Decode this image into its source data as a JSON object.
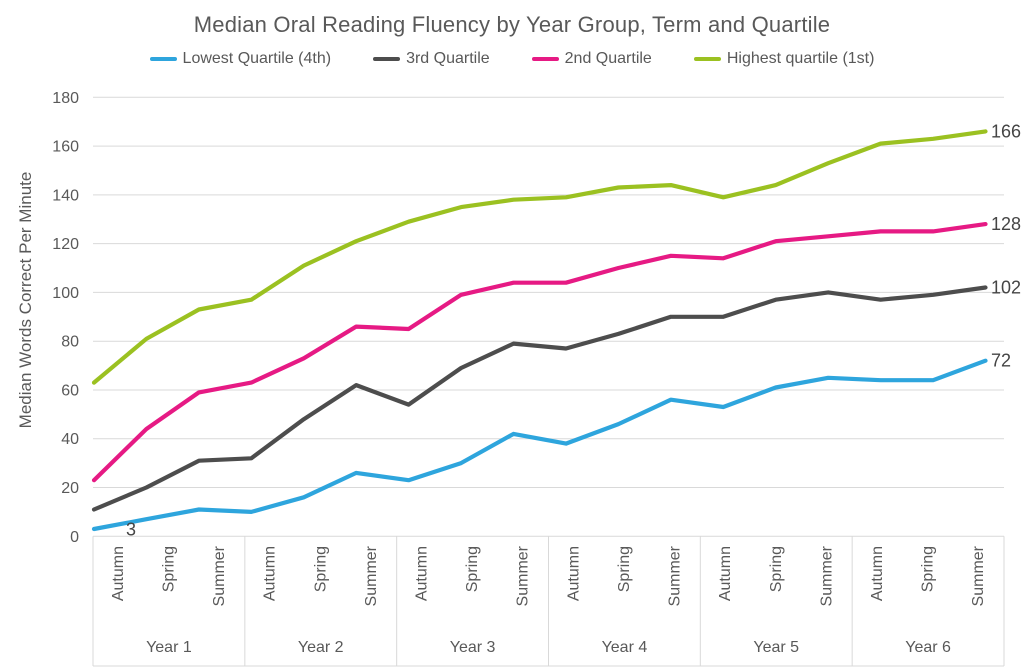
{
  "chart_data": {
    "type": "line",
    "title": "Median Oral Reading Fluency by Year Group, Term and Quartile",
    "ylabel": "Median Words Correct Per Minute",
    "xlabel": "",
    "ylim": [
      0,
      180
    ],
    "ytick_step": 20,
    "yticks": [
      0,
      20,
      40,
      60,
      80,
      100,
      120,
      140,
      160,
      180
    ],
    "grid": "horizontal",
    "legend_position": "top",
    "year_groups": [
      "Year 1",
      "Year 2",
      "Year 3",
      "Year 4",
      "Year 5",
      "Year 6"
    ],
    "terms": [
      "Autumn",
      "Spring",
      "Summer"
    ],
    "categories": [
      "Year 1 Autumn",
      "Year 1 Spring",
      "Year 1 Summer",
      "Year 2 Autumn",
      "Year 2 Spring",
      "Year 2 Summer",
      "Year 3 Autumn",
      "Year 3 Spring",
      "Year 3 Summer",
      "Year 4 Autumn",
      "Year 4 Spring",
      "Year 4 Summer",
      "Year 5 Autumn",
      "Year 5 Spring",
      "Year 5 Summer",
      "Year 6 Autumn",
      "Year 6 Spring",
      "Year 6 Summer"
    ],
    "series": [
      {
        "name": "Lowest Quartile (4th)",
        "color": "#2EA5DD",
        "values": [
          3,
          7,
          11,
          10,
          16,
          26,
          23,
          30,
          42,
          38,
          46,
          56,
          53,
          61,
          65,
          64,
          64,
          72
        ],
        "end_label": "72"
      },
      {
        "name": "3rd Quartile",
        "color": "#4D4D4D",
        "values": [
          11,
          20,
          31,
          32,
          48,
          62,
          54,
          69,
          79,
          77,
          83,
          90,
          90,
          97,
          100,
          97,
          99,
          102
        ],
        "end_label": "102"
      },
      {
        "name": "2nd Quartile",
        "color": "#E61A84",
        "values": [
          23,
          44,
          59,
          63,
          73,
          86,
          85,
          99,
          104,
          104,
          110,
          115,
          114,
          121,
          123,
          125,
          125,
          128
        ],
        "end_label": "128"
      },
      {
        "name": "Highest quartile (1st)",
        "color": "#9BC121",
        "values": [
          63,
          81,
          93,
          97,
          111,
          121,
          129,
          135,
          138,
          139,
          143,
          144,
          139,
          144,
          153,
          161,
          163,
          166
        ],
        "end_label": "166"
      }
    ],
    "annotations": [
      {
        "text": "3",
        "series": "Lowest Quartile (4th)",
        "point_index": 0
      }
    ]
  }
}
